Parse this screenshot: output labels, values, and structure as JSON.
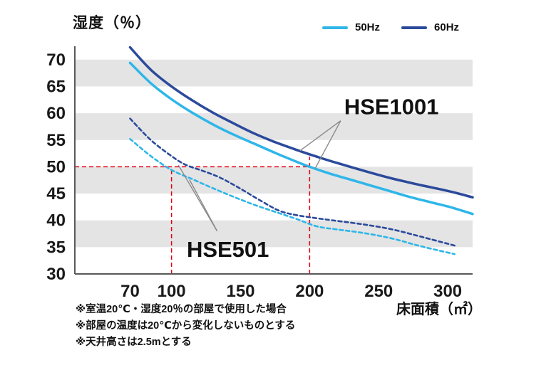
{
  "title": "湿度（％）",
  "x_axis_label": "床面積（㎡）",
  "legend": {
    "items": [
      {
        "label": "50Hz",
        "color": "#2eb6e9"
      },
      {
        "label": "60Hz",
        "color": "#2b4a9c"
      }
    ]
  },
  "footnotes": [
    "※室温20℃・湿度20％の部屋で使用した場合",
    "※部屋の温度は20℃から変化しないものとする",
    "※天井高さは2.5mとする"
  ],
  "chart_data": {
    "type": "line",
    "title": "湿度（％）",
    "xlabel": "床面積（㎡）",
    "ylabel": "湿度（％）",
    "xlim": [
      30,
      318
    ],
    "ylim": [
      30,
      72.5
    ],
    "x_ticks": [
      70,
      100,
      150,
      200,
      250,
      300
    ],
    "y_ticks": [
      30,
      35,
      40,
      45,
      50,
      55,
      60,
      65,
      70
    ],
    "grid": "horizontal-stripes",
    "stripe_color": "#e4e4e4",
    "axis_color": "#595959",
    "legend_position": "top-right",
    "series": [
      {
        "name": "HSE1001 60Hz",
        "model": "HSE1001",
        "freq": "60Hz",
        "color": "#2b4a9c",
        "style": "solid",
        "points": [
          [
            70,
            72.3
          ],
          [
            85,
            68.1
          ],
          [
            100,
            65.0
          ],
          [
            115,
            62.4
          ],
          [
            130,
            60.1
          ],
          [
            145,
            58.1
          ],
          [
            160,
            56.2
          ],
          [
            175,
            54.6
          ],
          [
            190,
            53.2
          ],
          [
            205,
            51.9
          ],
          [
            220,
            50.7
          ],
          [
            240,
            49.2
          ],
          [
            260,
            47.8
          ],
          [
            280,
            46.6
          ],
          [
            300,
            45.5
          ],
          [
            318,
            44.3
          ]
        ]
      },
      {
        "name": "HSE1001 50Hz",
        "model": "HSE1001",
        "freq": "50Hz",
        "color": "#2eb6e9",
        "style": "solid",
        "points": [
          [
            70,
            69.4
          ],
          [
            85,
            65.6
          ],
          [
            100,
            62.6
          ],
          [
            115,
            60.1
          ],
          [
            130,
            57.9
          ],
          [
            145,
            56.0
          ],
          [
            160,
            54.3
          ],
          [
            175,
            52.6
          ],
          [
            190,
            51.0
          ],
          [
            200,
            50.0
          ],
          [
            215,
            48.7
          ],
          [
            235,
            47.2
          ],
          [
            255,
            45.7
          ],
          [
            275,
            44.2
          ],
          [
            300,
            42.6
          ],
          [
            318,
            41.2
          ]
        ]
      },
      {
        "name": "HSE501 60Hz",
        "model": "HSE501",
        "freq": "60Hz",
        "color": "#2b4a9c",
        "style": "dashed",
        "points": [
          [
            70,
            59.0
          ],
          [
            85,
            55.0
          ],
          [
            100,
            52.0
          ],
          [
            110,
            50.4
          ],
          [
            122,
            49.3
          ],
          [
            135,
            48.0
          ],
          [
            150,
            45.9
          ],
          [
            165,
            43.6
          ],
          [
            178,
            41.8
          ],
          [
            190,
            41.0
          ],
          [
            205,
            40.4
          ],
          [
            220,
            39.9
          ],
          [
            240,
            39.2
          ],
          [
            260,
            38.3
          ],
          [
            280,
            37.0
          ],
          [
            305,
            35.3
          ]
        ]
      },
      {
        "name": "HSE501 50Hz",
        "model": "HSE501",
        "freq": "50Hz",
        "color": "#2eb6e9",
        "style": "dashed",
        "points": [
          [
            70,
            55.2
          ],
          [
            85,
            52.0
          ],
          [
            100,
            49.4
          ],
          [
            115,
            47.7
          ],
          [
            130,
            46.0
          ],
          [
            145,
            44.4
          ],
          [
            160,
            42.9
          ],
          [
            175,
            41.6
          ],
          [
            190,
            40.3
          ],
          [
            205,
            38.9
          ],
          [
            220,
            38.3
          ],
          [
            240,
            37.6
          ],
          [
            260,
            36.6
          ],
          [
            280,
            35.2
          ],
          [
            305,
            33.7
          ]
        ]
      }
    ],
    "reference": {
      "color": "#e60012",
      "horizontal": {
        "y": 50,
        "x_from": 30,
        "x_to": 200
      },
      "verticals": [
        {
          "x": 100,
          "y_from": 30,
          "y_to": 50
        },
        {
          "x": 200,
          "y_from": 30,
          "y_to": 51.9
        }
      ]
    },
    "annotations": [
      {
        "label": "HSE1001",
        "text_x": 225,
        "text_y": 59.8,
        "pointer_from": [
          222.5,
          58.6
        ],
        "targets": [
          [
            193,
            53.0
          ],
          [
            204,
            49.7
          ]
        ]
      },
      {
        "label": "HSE501",
        "text_x": 111,
        "text_y": 33.2,
        "pointer_from": [
          133,
          38.0
        ],
        "targets": [
          [
            105,
            50.3
          ],
          [
            113,
            47.6
          ]
        ]
      }
    ]
  }
}
